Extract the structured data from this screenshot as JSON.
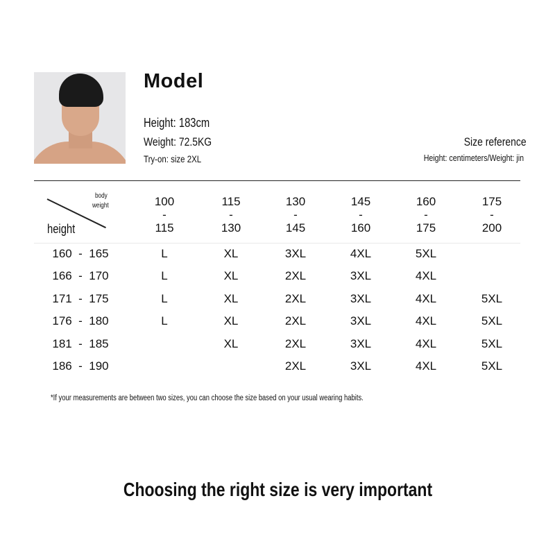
{
  "model": {
    "title": "Model",
    "height": "Height: 183cm",
    "weight": "Weight: 72.5KG",
    "tryon": "Try-on: size 2XL"
  },
  "reference": {
    "title": "Size reference",
    "units": "Height: centimeters/Weight: jin"
  },
  "table": {
    "corner_top": [
      "body",
      "weight"
    ],
    "corner_bottom": "height",
    "columns": [
      {
        "from": "100",
        "sep": "-",
        "to": "115"
      },
      {
        "from": "115",
        "sep": "-",
        "to": "130"
      },
      {
        "from": "130",
        "sep": "-",
        "to": "145"
      },
      {
        "from": "145",
        "sep": "-",
        "to": "160"
      },
      {
        "from": "160",
        "sep": "-",
        "to": "175"
      },
      {
        "from": "175",
        "sep": "-",
        "to": "200"
      }
    ],
    "rows": [
      {
        "height": "160  -  165",
        "sizes": [
          "L",
          "XL",
          "3XL",
          "4XL",
          "5XL",
          ""
        ]
      },
      {
        "height": "166  -  170",
        "sizes": [
          "L",
          "XL",
          "2XL",
          "3XL",
          "4XL",
          ""
        ]
      },
      {
        "height": "171  -  175",
        "sizes": [
          "L",
          "XL",
          "2XL",
          "3XL",
          "4XL",
          "5XL"
        ]
      },
      {
        "height": "176  -  180",
        "sizes": [
          "L",
          "XL",
          "2XL",
          "3XL",
          "4XL",
          "5XL"
        ]
      },
      {
        "height": "181  -  185",
        "sizes": [
          "",
          "XL",
          "2XL",
          "3XL",
          "4XL",
          "5XL"
        ]
      },
      {
        "height": "186  -  190",
        "sizes": [
          "",
          "",
          "2XL",
          "3XL",
          "4XL",
          "5XL"
        ]
      }
    ]
  },
  "note": "*If your measurements are between two sizes, you can choose the size based on your usual wearing habits.",
  "footer": "Choosing the right size is very important"
}
